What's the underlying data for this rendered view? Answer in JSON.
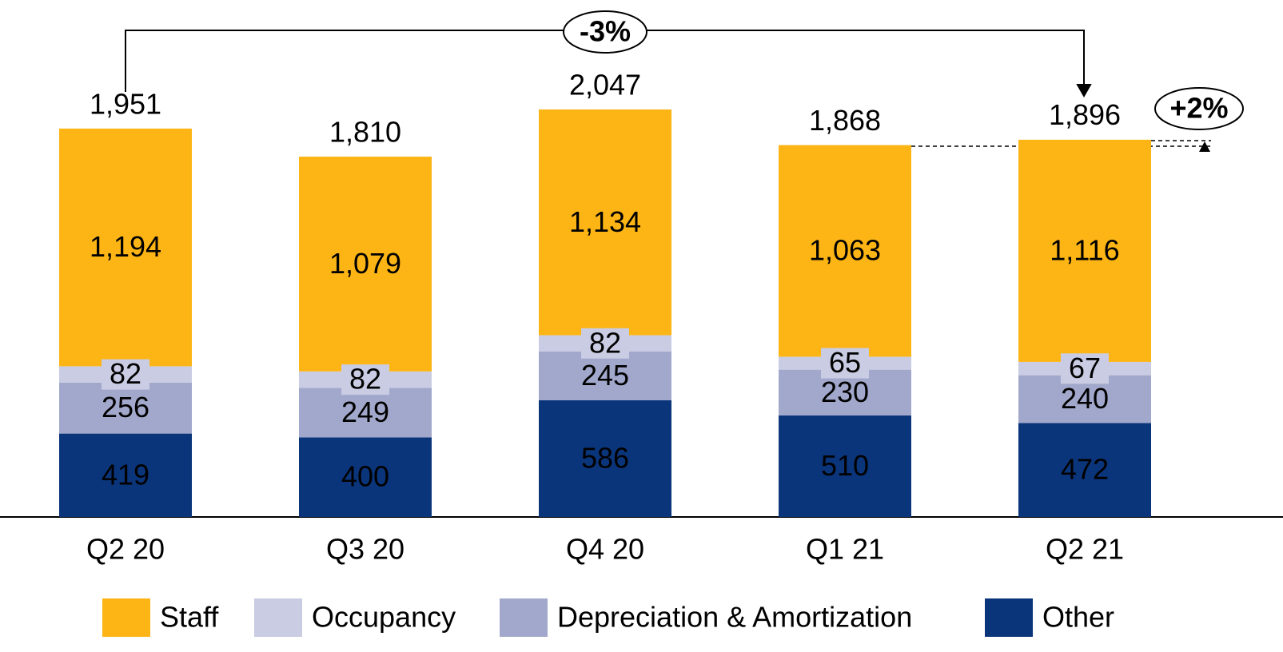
{
  "chart_data": {
    "type": "stacked_bar",
    "categories": [
      "Q2 20",
      "Q3 20",
      "Q4 20",
      "Q1 21",
      "Q2 21"
    ],
    "series": [
      {
        "name": "Staff",
        "color": "#fdb515",
        "values": [
          1194,
          1079,
          1134,
          1063,
          1116
        ],
        "value_labels": [
          "1,194",
          "1,079",
          "1,134",
          "1,063",
          "1,116"
        ]
      },
      {
        "name": "Occupancy",
        "color": "#c9cce3",
        "values": [
          82,
          82,
          82,
          65,
          67
        ]
      },
      {
        "name": "Depreciation & Amortization",
        "color": "#a2a8cb",
        "values": [
          256,
          249,
          245,
          230,
          240
        ]
      },
      {
        "name": "Other",
        "color": "#0b357a",
        "values": [
          419,
          400,
          586,
          510,
          472
        ]
      }
    ],
    "totals": [
      1951,
      1810,
      2047,
      1868,
      1896
    ],
    "total_labels": [
      "1,951",
      "1,810",
      "2,047",
      "1,868",
      "1,896"
    ],
    "annotations": [
      "-3%",
      "+2%"
    ]
  }
}
